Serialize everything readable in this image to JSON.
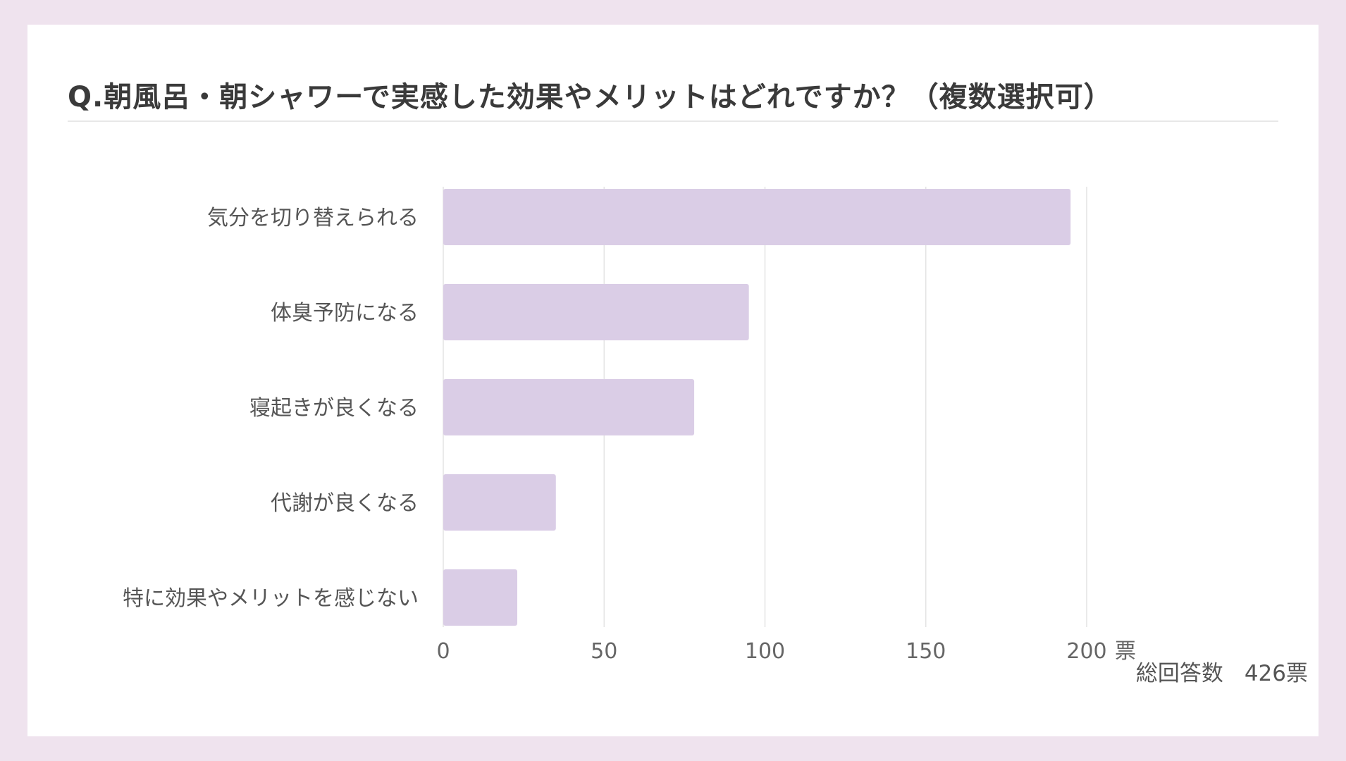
{
  "title": "Q.朝風呂・朝シャワーで実感した効果やメリットはどれですか？（複数選択可）",
  "total_label": "総回答数",
  "total_value": "426票",
  "colors": {
    "bar": "#dacde6",
    "grid": "#e4e4e4",
    "background": "#efe3ee"
  },
  "chart_data": {
    "type": "bar",
    "orientation": "horizontal",
    "categories": [
      "気分を切り替えられる",
      "体臭予防になる",
      "寝起きが良くなる",
      "代謝が良くなる",
      "特に効果やメリットを感じない"
    ],
    "values": [
      195,
      95,
      78,
      35,
      23
    ],
    "xlim": [
      0,
      200
    ],
    "xticks": [
      "0",
      "50",
      "100",
      "150",
      "200"
    ],
    "xunit": "票",
    "grid": true
  }
}
